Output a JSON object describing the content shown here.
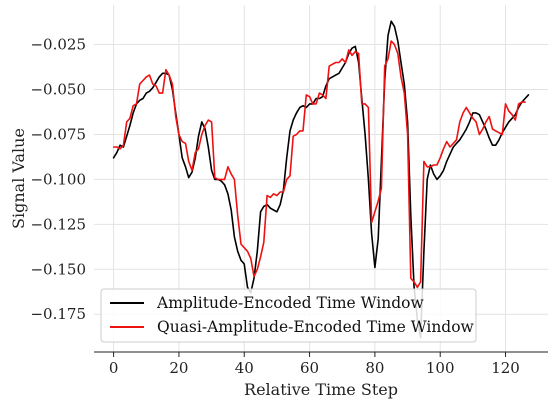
{
  "chart_data": {
    "type": "line",
    "xlabel": "Relative Time Step",
    "ylabel": "Signal Value",
    "xlim": [
      -6,
      133
    ],
    "ylim": [
      -0.196,
      -0.003
    ],
    "xticks": [
      0,
      20,
      40,
      60,
      80,
      100,
      120
    ],
    "xtick_labels": [
      "0",
      "20",
      "40",
      "60",
      "80",
      "100",
      "120"
    ],
    "yticks": [
      -0.175,
      -0.15,
      -0.125,
      -0.1,
      -0.075,
      -0.05,
      -0.025
    ],
    "ytick_labels": [
      "−0.175",
      "−0.150",
      "−0.125",
      "−0.100",
      "−0.075",
      "−0.050",
      "−0.025"
    ],
    "grid": true,
    "legend_position": "lower-left",
    "series": [
      {
        "name": "Amplitude-Encoded Time Window",
        "color": "#000000",
        "x": [
          0,
          1,
          2,
          3,
          4,
          5,
          6,
          7,
          8,
          9,
          10,
          11,
          12,
          13,
          14,
          15,
          16,
          17,
          18,
          19,
          20,
          21,
          22,
          23,
          24,
          25,
          26,
          27,
          28,
          29,
          30,
          31,
          32,
          33,
          34,
          35,
          36,
          37,
          38,
          39,
          40,
          41,
          42,
          43,
          44,
          45,
          46,
          47,
          48,
          49,
          50,
          51,
          52,
          53,
          54,
          55,
          56,
          57,
          58,
          59,
          60,
          61,
          62,
          63,
          64,
          65,
          66,
          67,
          68,
          69,
          70,
          71,
          72,
          73,
          74,
          75,
          76,
          77,
          78,
          79,
          80,
          81,
          82,
          83,
          84,
          85,
          86,
          87,
          88,
          89,
          90,
          91,
          92,
          93,
          94,
          95,
          96,
          97,
          98,
          99,
          100,
          101,
          102,
          103,
          104,
          105,
          106,
          107,
          108,
          109,
          110,
          111,
          112,
          113,
          114,
          115,
          116,
          117,
          118,
          119,
          120,
          121,
          122,
          123,
          124,
          125,
          126,
          127
        ],
        "y": [
          -0.088,
          -0.085,
          -0.081,
          -0.082,
          -0.076,
          -0.07,
          -0.063,
          -0.058,
          -0.056,
          -0.055,
          -0.052,
          -0.051,
          -0.049,
          -0.046,
          -0.043,
          -0.041,
          -0.041,
          -0.042,
          -0.05,
          -0.063,
          -0.075,
          -0.088,
          -0.093,
          -0.099,
          -0.096,
          -0.088,
          -0.076,
          -0.068,
          -0.072,
          -0.082,
          -0.095,
          -0.1,
          -0.1,
          -0.101,
          -0.103,
          -0.108,
          -0.117,
          -0.132,
          -0.14,
          -0.145,
          -0.147,
          -0.16,
          -0.163,
          -0.155,
          -0.14,
          -0.118,
          -0.115,
          -0.114,
          -0.116,
          -0.117,
          -0.118,
          -0.114,
          -0.106,
          -0.088,
          -0.073,
          -0.067,
          -0.063,
          -0.06,
          -0.059,
          -0.06,
          -0.058,
          -0.058,
          -0.055,
          -0.055,
          -0.054,
          -0.048,
          -0.044,
          -0.043,
          -0.042,
          -0.041,
          -0.038,
          -0.035,
          -0.03,
          -0.027,
          -0.026,
          -0.035,
          -0.055,
          -0.075,
          -0.1,
          -0.13,
          -0.149,
          -0.133,
          -0.09,
          -0.045,
          -0.02,
          -0.012,
          -0.015,
          -0.023,
          -0.035,
          -0.047,
          -0.068,
          -0.12,
          -0.16,
          -0.178,
          -0.188,
          -0.14,
          -0.1,
          -0.092,
          -0.097,
          -0.1,
          -0.098,
          -0.095,
          -0.09,
          -0.086,
          -0.082,
          -0.08,
          -0.078,
          -0.075,
          -0.072,
          -0.068,
          -0.063,
          -0.063,
          -0.064,
          -0.068,
          -0.072,
          -0.077,
          -0.081,
          -0.081,
          -0.078,
          -0.074,
          -0.071,
          -0.068,
          -0.066,
          -0.064,
          -0.06,
          -0.057,
          -0.055,
          -0.053
        ]
      },
      {
        "name": "Quasi-Amplitude-Encoded Time Window",
        "color": "#ee1111",
        "x": [
          0,
          1,
          2,
          3,
          4,
          5,
          6,
          7,
          8,
          9,
          10,
          11,
          12,
          13,
          14,
          15,
          16,
          17,
          18,
          19,
          20,
          21,
          22,
          23,
          24,
          25,
          26,
          27,
          28,
          29,
          30,
          31,
          32,
          33,
          34,
          35,
          36,
          37,
          38,
          39,
          40,
          41,
          42,
          43,
          44,
          45,
          46,
          47,
          48,
          49,
          50,
          51,
          52,
          53,
          54,
          55,
          56,
          57,
          58,
          59,
          60,
          61,
          62,
          63,
          64,
          65,
          66,
          67,
          68,
          69,
          70,
          71,
          72,
          73,
          74,
          75,
          76,
          77,
          78,
          79,
          80,
          81,
          82,
          83,
          84,
          85,
          86,
          87,
          88,
          89,
          90,
          91,
          92,
          93,
          94,
          95,
          96,
          97,
          98,
          99,
          100,
          101,
          102,
          103,
          104,
          105,
          106,
          107,
          108,
          109,
          110,
          111,
          112,
          113,
          114,
          115,
          116,
          117,
          118,
          119,
          120,
          121,
          122,
          123,
          124,
          125,
          126
        ],
        "y": [
          -0.082,
          -0.082,
          -0.083,
          -0.081,
          -0.068,
          -0.066,
          -0.059,
          -0.058,
          -0.047,
          -0.045,
          -0.043,
          -0.042,
          -0.047,
          -0.048,
          -0.052,
          -0.052,
          -0.039,
          -0.042,
          -0.047,
          -0.065,
          -0.075,
          -0.079,
          -0.08,
          -0.09,
          -0.095,
          -0.085,
          -0.083,
          -0.075,
          -0.07,
          -0.067,
          -0.068,
          -0.099,
          -0.1,
          -0.1,
          -0.1,
          -0.093,
          -0.097,
          -0.1,
          -0.12,
          -0.136,
          -0.138,
          -0.14,
          -0.144,
          -0.154,
          -0.15,
          -0.143,
          -0.135,
          -0.109,
          -0.11,
          -0.108,
          -0.109,
          -0.107,
          -0.107,
          -0.1,
          -0.098,
          -0.076,
          -0.075,
          -0.073,
          -0.073,
          -0.053,
          -0.054,
          -0.058,
          -0.058,
          -0.052,
          -0.053,
          -0.055,
          -0.037,
          -0.036,
          -0.035,
          -0.035,
          -0.033,
          -0.035,
          -0.028,
          -0.031,
          -0.029,
          -0.03,
          -0.058,
          -0.058,
          -0.06,
          -0.124,
          -0.118,
          -0.112,
          -0.105,
          -0.037,
          -0.033,
          -0.023,
          -0.025,
          -0.03,
          -0.043,
          -0.052,
          -0.075,
          -0.155,
          -0.157,
          -0.16,
          -0.157,
          -0.09,
          -0.093,
          -0.093,
          -0.092,
          -0.092,
          -0.088,
          -0.083,
          -0.079,
          -0.082,
          -0.08,
          -0.078,
          -0.068,
          -0.063,
          -0.06,
          -0.063,
          -0.066,
          -0.068,
          -0.075,
          -0.072,
          -0.068,
          -0.065,
          -0.072,
          -0.073,
          -0.074,
          -0.075,
          -0.058,
          -0.062,
          -0.064,
          -0.067,
          -0.058,
          -0.057,
          -0.057
        ]
      }
    ]
  }
}
